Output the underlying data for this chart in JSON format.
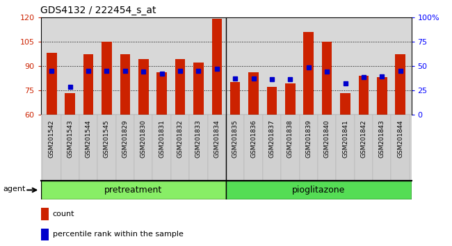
{
  "title": "GDS4132 / 222454_s_at",
  "samples": [
    "GSM201542",
    "GSM201543",
    "GSM201544",
    "GSM201545",
    "GSM201829",
    "GSM201830",
    "GSM201831",
    "GSM201832",
    "GSM201833",
    "GSM201834",
    "GSM201835",
    "GSM201836",
    "GSM201837",
    "GSM201838",
    "GSM201839",
    "GSM201840",
    "GSM201841",
    "GSM201842",
    "GSM201843",
    "GSM201844"
  ],
  "counts": [
    98,
    73,
    97,
    105,
    97,
    94,
    86,
    94,
    92,
    119,
    80,
    86,
    77,
    79,
    111,
    105,
    73,
    84,
    83,
    97
  ],
  "percentile": [
    45,
    28,
    45,
    45,
    45,
    44,
    42,
    45,
    45,
    47,
    37,
    37,
    36,
    36,
    48,
    44,
    32,
    38,
    39,
    45
  ],
  "bar_color": "#cc2200",
  "dot_color": "#0000cc",
  "ylim_left": [
    60,
    120
  ],
  "ylim_right": [
    0,
    100
  ],
  "yticks_left": [
    60,
    75,
    90,
    105,
    120
  ],
  "yticks_right": [
    0,
    25,
    50,
    75,
    100
  ],
  "ytick_labels_right": [
    "0",
    "25",
    "50",
    "75",
    "100%"
  ],
  "pretreatment_count": 10,
  "group1_label": "pretreatment",
  "group2_label": "pioglitazone",
  "group1_color": "#88ee66",
  "group2_color": "#55dd55",
  "agent_label": "agent",
  "legend1": "count",
  "legend2": "percentile rank within the sample",
  "bar_width": 0.55,
  "bg_color": "#d8d8d8",
  "tick_area_color": "#d0d0d0"
}
